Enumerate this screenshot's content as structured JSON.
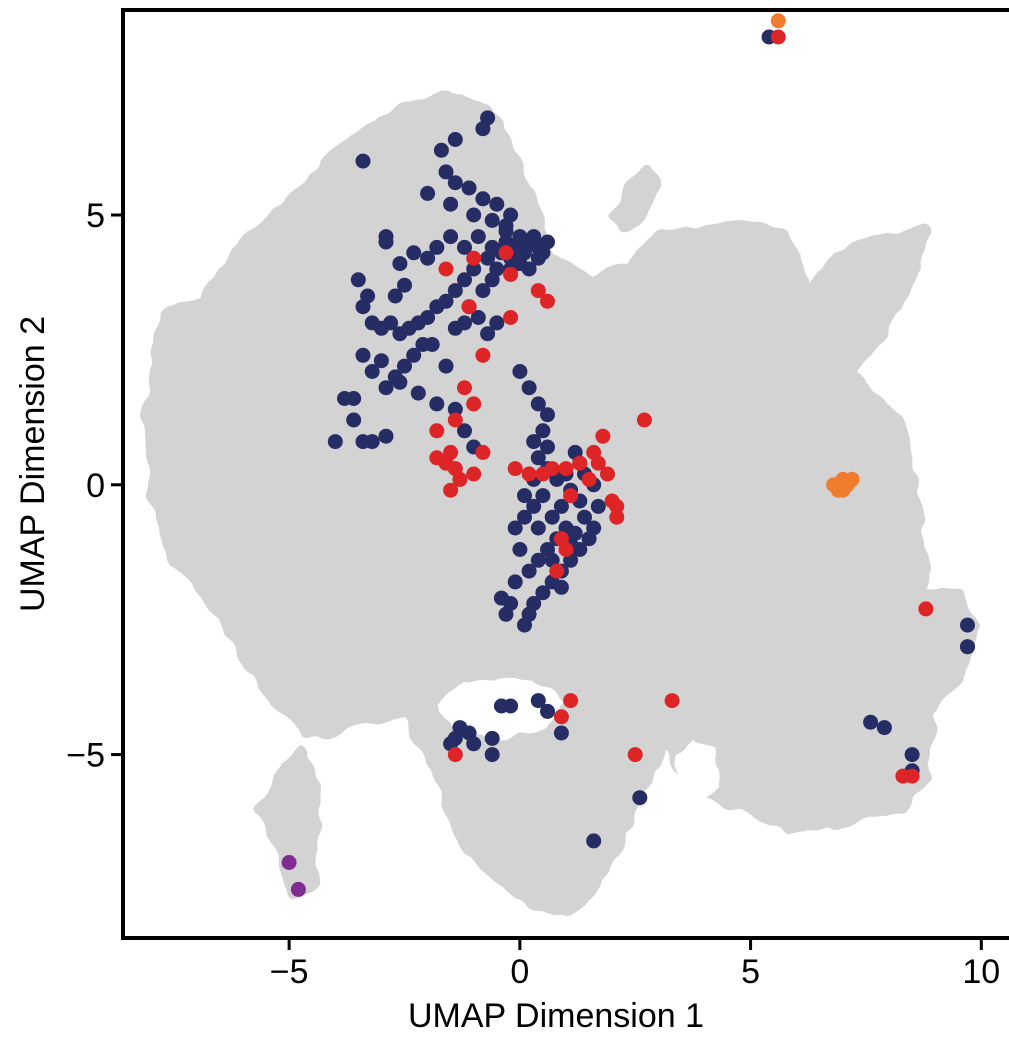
{
  "chart_data": {
    "type": "scatter",
    "title": "",
    "xlabel": "UMAP Dimension 1",
    "ylabel": "UMAP Dimension 2",
    "xlim": [
      -8.6,
      10.6
    ],
    "ylim": [
      -8.4,
      8.8
    ],
    "x_ticks": [
      -5,
      0,
      5,
      10
    ],
    "y_ticks": [
      -5,
      0,
      5
    ],
    "x_tick_labels": [
      "−5",
      "0",
      "5",
      "10"
    ],
    "y_tick_labels": [
      "−5",
      "0",
      "5"
    ],
    "grid": false,
    "legend": "none",
    "background_point_color": "#d3d3d3",
    "background_regions": [
      {
        "polygon": [
          [
            -7.8,
            2.6
          ],
          [
            -7.6,
            3.2
          ],
          [
            -6.8,
            3.4
          ],
          [
            -6.0,
            4.4
          ],
          [
            -4.6,
            5.5
          ],
          [
            -3.6,
            6.4
          ],
          [
            -2.4,
            7.0
          ],
          [
            -1.6,
            7.2
          ],
          [
            -0.7,
            6.9
          ],
          [
            0.0,
            5.8
          ],
          [
            0.6,
            4.2
          ],
          [
            1.6,
            3.7
          ],
          [
            2.4,
            4.0
          ],
          [
            3.0,
            4.6
          ],
          [
            4.1,
            4.7
          ],
          [
            5.0,
            4.8
          ],
          [
            5.7,
            4.6
          ],
          [
            6.0,
            4.1
          ],
          [
            6.2,
            3.4
          ],
          [
            6.9,
            4.2
          ],
          [
            7.8,
            4.5
          ],
          [
            8.8,
            4.7
          ],
          [
            8.4,
            3.8
          ],
          [
            7.8,
            2.8
          ],
          [
            7.1,
            2.1
          ],
          [
            8.1,
            1.2
          ],
          [
            8.4,
            0.3
          ],
          [
            8.6,
            -0.8
          ],
          [
            8.7,
            -2.0
          ],
          [
            9.4,
            -2.1
          ],
          [
            9.8,
            -2.6
          ],
          [
            9.5,
            -3.6
          ],
          [
            8.8,
            -4.2
          ],
          [
            8.8,
            -5.4
          ],
          [
            8.2,
            -5.9
          ],
          [
            7.0,
            -6.2
          ],
          [
            5.8,
            -6.3
          ],
          [
            4.6,
            -5.9
          ],
          [
            3.6,
            -5.4
          ],
          [
            3.2,
            -4.6
          ],
          [
            2.6,
            -5.6
          ],
          [
            1.8,
            -7.2
          ],
          [
            1.0,
            -7.9
          ],
          [
            0.0,
            -7.6
          ],
          [
            -1.2,
            -6.6
          ],
          [
            -1.8,
            -5.2
          ],
          [
            -2.4,
            -4.2
          ],
          [
            -3.6,
            -4.4
          ],
          [
            -4.6,
            -4.6
          ],
          [
            -5.8,
            -3.4
          ],
          [
            -6.4,
            -2.4
          ],
          [
            -7.4,
            -1.4
          ],
          [
            -7.9,
            -0.2
          ],
          [
            -8.0,
            1.4
          ]
        ]
      },
      {
        "polygon": [
          [
            2.1,
            5.0
          ],
          [
            2.4,
            5.4
          ],
          [
            2.7,
            5.8
          ],
          [
            2.9,
            5.6
          ],
          [
            2.6,
            5.0
          ],
          [
            2.3,
            4.8
          ]
        ]
      },
      {
        "polygon": [
          [
            -5.6,
            -6.0
          ],
          [
            -5.2,
            -6.6
          ],
          [
            -5.0,
            -7.2
          ],
          [
            -4.9,
            -7.6
          ],
          [
            -4.5,
            -7.4
          ],
          [
            -4.6,
            -6.6
          ],
          [
            -4.4,
            -5.8
          ],
          [
            -4.7,
            -5.0
          ],
          [
            -5.0,
            -5.2
          ],
          [
            -5.3,
            -5.6
          ]
        ]
      }
    ],
    "background_holes": [
      {
        "polygon": [
          [
            -1.8,
            -4.1
          ],
          [
            -1.2,
            -3.6
          ],
          [
            0.2,
            -3.6
          ],
          [
            1.0,
            -4.0
          ],
          [
            0.6,
            -4.5
          ],
          [
            -0.4,
            -4.7
          ],
          [
            -1.4,
            -4.6
          ]
        ]
      },
      {
        "polygon": [
          [
            3.4,
            -5.0
          ],
          [
            3.8,
            -4.7
          ],
          [
            4.2,
            -4.9
          ],
          [
            4.3,
            -5.6
          ],
          [
            3.9,
            -5.9
          ],
          [
            3.4,
            -5.6
          ]
        ]
      }
    ],
    "series": [
      {
        "color": "#262c64",
        "points": [
          [
            -3.4,
            6.0
          ],
          [
            -1.7,
            6.2
          ],
          [
            -1.4,
            6.4
          ],
          [
            -0.8,
            6.6
          ],
          [
            -0.7,
            6.8
          ],
          [
            -1.6,
            5.8
          ],
          [
            -1.4,
            5.6
          ],
          [
            -1.1,
            5.5
          ],
          [
            -0.8,
            5.3
          ],
          [
            -0.5,
            5.2
          ],
          [
            -0.2,
            5.0
          ],
          [
            -2.0,
            5.4
          ],
          [
            -1.5,
            5.2
          ],
          [
            -1.0,
            5.0
          ],
          [
            -0.6,
            4.9
          ],
          [
            -0.3,
            4.8
          ],
          [
            0.0,
            4.6
          ],
          [
            0.2,
            4.5
          ],
          [
            0.4,
            4.4
          ],
          [
            0.6,
            4.5
          ],
          [
            -0.9,
            4.6
          ],
          [
            -0.6,
            4.4
          ],
          [
            -0.4,
            4.3
          ],
          [
            -0.2,
            4.2
          ],
          [
            0.0,
            4.1
          ],
          [
            0.2,
            4.0
          ],
          [
            0.4,
            4.2
          ],
          [
            -0.7,
            4.2
          ],
          [
            -0.5,
            4.0
          ],
          [
            -0.3,
            4.5
          ],
          [
            -1.2,
            4.4
          ],
          [
            -1.5,
            4.6
          ],
          [
            -1.8,
            4.4
          ],
          [
            -2.0,
            4.2
          ],
          [
            -2.3,
            4.3
          ],
          [
            -2.6,
            4.1
          ],
          [
            -2.9,
            4.5
          ],
          [
            -2.9,
            4.6
          ],
          [
            -1.0,
            4.0
          ],
          [
            -1.2,
            3.8
          ],
          [
            -1.4,
            3.6
          ],
          [
            -1.6,
            3.4
          ],
          [
            -1.8,
            3.3
          ],
          [
            -2.0,
            3.1
          ],
          [
            -2.2,
            3.0
          ],
          [
            -2.4,
            2.9
          ],
          [
            -2.6,
            2.8
          ],
          [
            -2.8,
            3.0
          ],
          [
            -3.0,
            2.9
          ],
          [
            -3.2,
            3.0
          ],
          [
            -3.4,
            3.3
          ],
          [
            -3.5,
            3.8
          ],
          [
            -3.3,
            3.5
          ],
          [
            -2.5,
            3.7
          ],
          [
            -2.7,
            3.5
          ],
          [
            -1.1,
            3.3
          ],
          [
            -0.9,
            3.1
          ],
          [
            -0.7,
            2.8
          ],
          [
            -0.5,
            3.0
          ],
          [
            -0.8,
            3.6
          ],
          [
            -0.6,
            3.8
          ],
          [
            -2.1,
            2.6
          ],
          [
            -2.3,
            2.4
          ],
          [
            -2.5,
            2.2
          ],
          [
            -2.7,
            2.0
          ],
          [
            -3.0,
            2.3
          ],
          [
            -3.2,
            2.1
          ],
          [
            -3.4,
            2.4
          ],
          [
            -3.6,
            1.6
          ],
          [
            -3.8,
            1.6
          ],
          [
            -2.9,
            1.8
          ],
          [
            -2.6,
            1.9
          ],
          [
            -2.2,
            1.7
          ],
          [
            -1.8,
            1.5
          ],
          [
            -1.4,
            1.4
          ],
          [
            -1.2,
            1.0
          ],
          [
            -1.0,
            0.7
          ],
          [
            -2.9,
            0.9
          ],
          [
            -3.2,
            0.8
          ],
          [
            -3.4,
            0.8
          ],
          [
            -3.6,
            1.2
          ],
          [
            -4.0,
            0.8
          ],
          [
            -1.6,
            2.2
          ],
          [
            -1.9,
            2.6
          ],
          [
            -1.4,
            2.9
          ],
          [
            -1.2,
            3.0
          ],
          [
            -0.3,
            4.7
          ],
          [
            -0.1,
            4.4
          ],
          [
            0.1,
            4.3
          ],
          [
            0.3,
            4.6
          ],
          [
            0.5,
            4.3
          ],
          [
            -0.2,
            4.0
          ],
          [
            0.0,
            2.1
          ],
          [
            0.2,
            1.8
          ],
          [
            0.4,
            1.5
          ],
          [
            0.6,
            1.3
          ],
          [
            0.5,
            1.0
          ],
          [
            0.3,
            0.8
          ],
          [
            0.6,
            0.7
          ],
          [
            0.4,
            0.5
          ],
          [
            0.6,
            0.3
          ],
          [
            0.8,
            0.1
          ],
          [
            0.5,
            -0.2
          ],
          [
            0.3,
            -0.4
          ],
          [
            0.1,
            -0.6
          ],
          [
            0.4,
            -0.8
          ],
          [
            0.7,
            -0.6
          ],
          [
            0.9,
            -0.4
          ],
          [
            1.0,
            0.2
          ],
          [
            1.1,
            -0.1
          ],
          [
            1.3,
            -0.3
          ],
          [
            1.4,
            -0.6
          ],
          [
            1.6,
            -0.8
          ],
          [
            1.5,
            -1.0
          ],
          [
            1.3,
            -1.2
          ],
          [
            1.1,
            -1.4
          ],
          [
            0.9,
            -1.6
          ],
          [
            0.7,
            -1.8
          ],
          [
            0.5,
            -2.0
          ],
          [
            0.3,
            -2.2
          ],
          [
            0.2,
            -2.4
          ],
          [
            0.1,
            -2.6
          ],
          [
            -0.2,
            -2.2
          ],
          [
            -0.4,
            -2.1
          ],
          [
            -0.3,
            -2.4
          ],
          [
            -0.1,
            -1.8
          ],
          [
            0.2,
            -1.6
          ],
          [
            0.4,
            -1.4
          ],
          [
            0.6,
            -1.2
          ],
          [
            0.8,
            -1.0
          ],
          [
            1.0,
            -0.8
          ],
          [
            1.2,
            -0.9
          ],
          [
            0.0,
            -1.2
          ],
          [
            -0.1,
            -0.8
          ],
          [
            0.1,
            -0.2
          ],
          [
            0.3,
            0.1
          ],
          [
            1.3,
            0.4
          ],
          [
            1.2,
            0.6
          ],
          [
            1.4,
            0.2
          ],
          [
            1.6,
            0.0
          ],
          [
            1.7,
            -0.4
          ],
          [
            0.7,
            -1.4
          ],
          [
            0.9,
            -1.9
          ],
          [
            1.1,
            -1.1
          ],
          [
            -1.3,
            -4.5
          ],
          [
            -1.4,
            -4.7
          ],
          [
            -1.5,
            -4.8
          ],
          [
            -1.1,
            -4.6
          ],
          [
            -1.0,
            -4.8
          ],
          [
            -0.6,
            -4.7
          ],
          [
            -0.4,
            -4.1
          ],
          [
            -0.2,
            -4.1
          ],
          [
            0.4,
            -4.0
          ],
          [
            0.6,
            -4.2
          ],
          [
            0.9,
            -4.6
          ],
          [
            -0.6,
            -5.0
          ],
          [
            1.6,
            -6.6
          ],
          [
            2.6,
            -5.8
          ],
          [
            7.6,
            -4.4
          ],
          [
            7.9,
            -4.5
          ],
          [
            8.5,
            -5.0
          ],
          [
            8.5,
            -5.3
          ],
          [
            9.7,
            -2.6
          ],
          [
            9.7,
            -3.0
          ],
          [
            9.7,
            -3.0
          ],
          [
            5.4,
            8.3
          ]
        ]
      },
      {
        "color": "#dd2426",
        "points": [
          [
            -1.6,
            4.0
          ],
          [
            -1.0,
            4.2
          ],
          [
            -0.3,
            4.3
          ],
          [
            -0.2,
            3.9
          ],
          [
            -1.1,
            3.3
          ],
          [
            -0.2,
            3.1
          ],
          [
            0.4,
            3.6
          ],
          [
            0.6,
            3.4
          ],
          [
            -0.8,
            2.4
          ],
          [
            -1.0,
            1.5
          ],
          [
            -1.2,
            1.8
          ],
          [
            -1.8,
            1.0
          ],
          [
            -1.4,
            1.2
          ],
          [
            -1.8,
            0.5
          ],
          [
            -1.6,
            0.4
          ],
          [
            -1.4,
            0.3
          ],
          [
            -1.5,
            0.6
          ],
          [
            -1.3,
            0.1
          ],
          [
            -1.0,
            0.2
          ],
          [
            -0.8,
            0.6
          ],
          [
            -1.5,
            -0.1
          ],
          [
            -0.1,
            0.3
          ],
          [
            0.2,
            0.2
          ],
          [
            0.5,
            0.2
          ],
          [
            0.7,
            0.3
          ],
          [
            1.0,
            0.3
          ],
          [
            1.3,
            0.4
          ],
          [
            1.6,
            0.6
          ],
          [
            1.8,
            0.9
          ],
          [
            1.7,
            0.4
          ],
          [
            1.5,
            0.1
          ],
          [
            1.9,
            0.2
          ],
          [
            2.0,
            -0.3
          ],
          [
            2.1,
            -0.4
          ],
          [
            2.1,
            -0.6
          ],
          [
            1.1,
            -0.2
          ],
          [
            0.9,
            -1.0
          ],
          [
            1.0,
            -1.2
          ],
          [
            0.8,
            -1.6
          ],
          [
            2.7,
            1.2
          ],
          [
            1.1,
            -4.0
          ],
          [
            0.9,
            -4.3
          ],
          [
            3.3,
            -4.0
          ],
          [
            2.5,
            -5.0
          ],
          [
            -1.4,
            -5.0
          ],
          [
            8.8,
            -2.3
          ],
          [
            8.3,
            -5.4
          ],
          [
            8.5,
            -5.4
          ],
          [
            5.6,
            8.3
          ]
        ]
      },
      {
        "color": "#f07c2e",
        "points": [
          [
            5.6,
            8.6
          ],
          [
            6.9,
            0.0
          ],
          [
            7.0,
            0.0
          ],
          [
            7.0,
            0.1
          ],
          [
            7.1,
            0.0
          ],
          [
            7.2,
            0.1
          ],
          [
            6.9,
            -0.1
          ],
          [
            7.0,
            -0.1
          ],
          [
            6.8,
            0.0
          ]
        ]
      },
      {
        "color": "#812a91",
        "points": [
          [
            -5.0,
            -7.0
          ],
          [
            -4.8,
            -7.5
          ]
        ]
      }
    ]
  }
}
